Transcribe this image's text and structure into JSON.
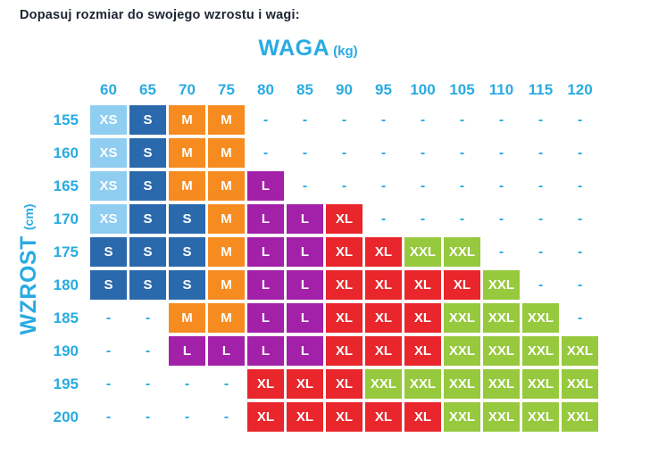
{
  "title": "Dopasuj rozmiar do swojego wzrostu i wagi:",
  "colors": {
    "accent": "#29abe2",
    "title_text": "#1e2433",
    "cell_text": "#ffffff",
    "background": "#ffffff"
  },
  "chart_data": {
    "type": "table",
    "title": "WAGA (kg)",
    "x_axis_label": "WAGA",
    "x_axis_unit": "(kg)",
    "y_axis_label": "WZROST",
    "y_axis_unit": "(cm)",
    "empty_marker": "-",
    "weights_kg": [
      "60",
      "65",
      "70",
      "75",
      "80",
      "85",
      "90",
      "95",
      "100",
      "105",
      "110",
      "115",
      "120"
    ],
    "heights_cm": [
      "155",
      "160",
      "165",
      "170",
      "175",
      "180",
      "185",
      "190",
      "195",
      "200"
    ],
    "rows": [
      [
        "XS",
        "S",
        "M",
        "M",
        "-",
        "-",
        "-",
        "-",
        "-",
        "-",
        "-",
        "-",
        "-"
      ],
      [
        "XS",
        "S",
        "M",
        "M",
        "-",
        "-",
        "-",
        "-",
        "-",
        "-",
        "-",
        "-",
        "-"
      ],
      [
        "XS",
        "S",
        "M",
        "M",
        "L",
        "-",
        "-",
        "-",
        "-",
        "-",
        "-",
        "-",
        "-"
      ],
      [
        "XS",
        "S",
        "S",
        "M",
        "L",
        "L",
        "XL",
        "-",
        "-",
        "-",
        "-",
        "-",
        "-"
      ],
      [
        "S",
        "S",
        "S",
        "M",
        "L",
        "L",
        "XL",
        "XL",
        "XXL",
        "XXL",
        "-",
        "-",
        "-"
      ],
      [
        "S",
        "S",
        "S",
        "M",
        "L",
        "L",
        "XL",
        "XL",
        "XL",
        "XL",
        "XXL",
        "-",
        "-"
      ],
      [
        "-",
        "-",
        "M",
        "M",
        "L",
        "L",
        "XL",
        "XL",
        "XL",
        "XXL",
        "XXL",
        "XXL",
        "-"
      ],
      [
        "-",
        "-",
        "L",
        "L",
        "L",
        "L",
        "XL",
        "XL",
        "XL",
        "XXL",
        "XXL",
        "XXL",
        "XXL"
      ],
      [
        "-",
        "-",
        "-",
        "-",
        "XL",
        "XL",
        "XL",
        "XXL",
        "XXL",
        "XXL",
        "XXL",
        "XXL",
        "XXL"
      ],
      [
        "-",
        "-",
        "-",
        "-",
        "XL",
        "XL",
        "XL",
        "XL",
        "XL",
        "XXL",
        "XXL",
        "XXL",
        "XXL"
      ]
    ],
    "size_colors": {
      "XS": "#8fcdf1",
      "S": "#2a69ac",
      "M": "#f68b1f",
      "L": "#a320a8",
      "XL": "#e8262b",
      "XXL": "#96c93d"
    }
  }
}
